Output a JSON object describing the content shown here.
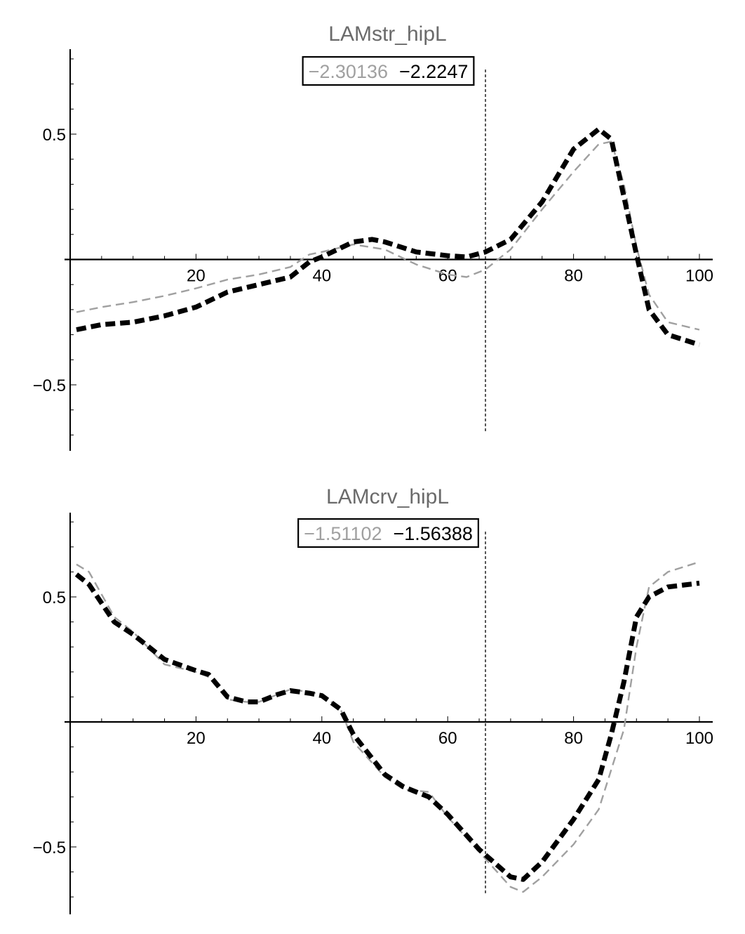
{
  "chart_data": [
    {
      "type": "line",
      "title": "LAMstr_hipL",
      "legend_values": [
        "−2.30136",
        "−2.2247"
      ],
      "xlim": [
        0,
        100
      ],
      "ylim": [
        -0.75,
        0.8
      ],
      "x_ticks": [
        20,
        40,
        60,
        80,
        100
      ],
      "y_tick_labels": [
        "0.5",
        "−0.5"
      ],
      "y_tick_values": [
        0.5,
        -0.5
      ],
      "vertical_marker_x": 66,
      "series": [
        {
          "style": "thin-dashed-gray",
          "color": "#a0a0a0",
          "x": [
            1,
            5,
            10,
            15,
            20,
            25,
            30,
            35,
            38,
            40,
            45,
            50,
            55,
            60,
            63,
            66,
            70,
            75,
            80,
            84,
            86,
            88,
            90,
            92,
            95,
            100
          ],
          "y": [
            -0.21,
            -0.19,
            -0.17,
            -0.145,
            -0.115,
            -0.08,
            -0.06,
            -0.03,
            0.02,
            0.03,
            0.06,
            0.04,
            -0.02,
            -0.06,
            -0.07,
            -0.04,
            0.04,
            0.2,
            0.35,
            0.46,
            0.47,
            0.3,
            0.05,
            -0.14,
            -0.25,
            -0.28
          ]
        },
        {
          "style": "thick-dashed-black",
          "color": "#000000",
          "x": [
            1,
            5,
            10,
            15,
            20,
            25,
            30,
            35,
            38,
            40,
            45,
            48,
            50,
            55,
            60,
            63,
            66,
            70,
            75,
            80,
            84,
            86,
            88,
            90,
            92,
            95,
            100
          ],
          "y": [
            -0.28,
            -0.26,
            -0.25,
            -0.225,
            -0.19,
            -0.13,
            -0.1,
            -0.07,
            -0.01,
            0.01,
            0.07,
            0.08,
            0.07,
            0.03,
            0.015,
            0.01,
            0.03,
            0.08,
            0.23,
            0.44,
            0.52,
            0.48,
            0.25,
            0.02,
            -0.2,
            -0.3,
            -0.34
          ]
        }
      ]
    },
    {
      "type": "line",
      "title": "LAMcrv_hipL",
      "legend_values": [
        "−1.51102",
        "−1.56388"
      ],
      "xlim": [
        0,
        100
      ],
      "ylim": [
        -0.77,
        0.83
      ],
      "x_ticks": [
        20,
        40,
        60,
        80,
        100
      ],
      "y_tick_labels": [
        "0.5",
        "−0.5"
      ],
      "y_tick_values": [
        0.5,
        -0.5
      ],
      "vertical_marker_x": 66,
      "series": [
        {
          "style": "thin-dashed-gray",
          "color": "#a0a0a0",
          "x": [
            1,
            3,
            7,
            10,
            15,
            20,
            22,
            25,
            28,
            30,
            33,
            35,
            38,
            40,
            43,
            45,
            50,
            53,
            57,
            60,
            65,
            70,
            72,
            75,
            80,
            84,
            88,
            90,
            92,
            95,
            100
          ],
          "y": [
            0.63,
            0.6,
            0.42,
            0.36,
            0.23,
            0.2,
            0.18,
            0.09,
            0.08,
            0.08,
            0.11,
            0.13,
            0.12,
            0.11,
            0.05,
            -0.08,
            -0.22,
            -0.27,
            -0.28,
            -0.38,
            -0.52,
            -0.66,
            -0.68,
            -0.62,
            -0.49,
            -0.35,
            -0.03,
            0.3,
            0.54,
            0.6,
            0.64
          ]
        },
        {
          "style": "thick-dashed-black",
          "color": "#000000",
          "x": [
            1,
            3,
            7,
            10,
            15,
            20,
            22,
            25,
            28,
            30,
            33,
            35,
            38,
            40,
            43,
            45,
            50,
            53,
            57,
            60,
            65,
            70,
            72,
            75,
            80,
            84,
            86,
            88,
            90,
            92,
            95,
            100
          ],
          "y": [
            0.59,
            0.55,
            0.4,
            0.35,
            0.25,
            0.205,
            0.19,
            0.1,
            0.08,
            0.08,
            0.11,
            0.125,
            0.115,
            0.105,
            0.05,
            -0.05,
            -0.21,
            -0.26,
            -0.3,
            -0.37,
            -0.51,
            -0.62,
            -0.63,
            -0.56,
            -0.39,
            -0.23,
            -0.05,
            0.16,
            0.42,
            0.5,
            0.54,
            0.555
          ]
        }
      ]
    }
  ]
}
